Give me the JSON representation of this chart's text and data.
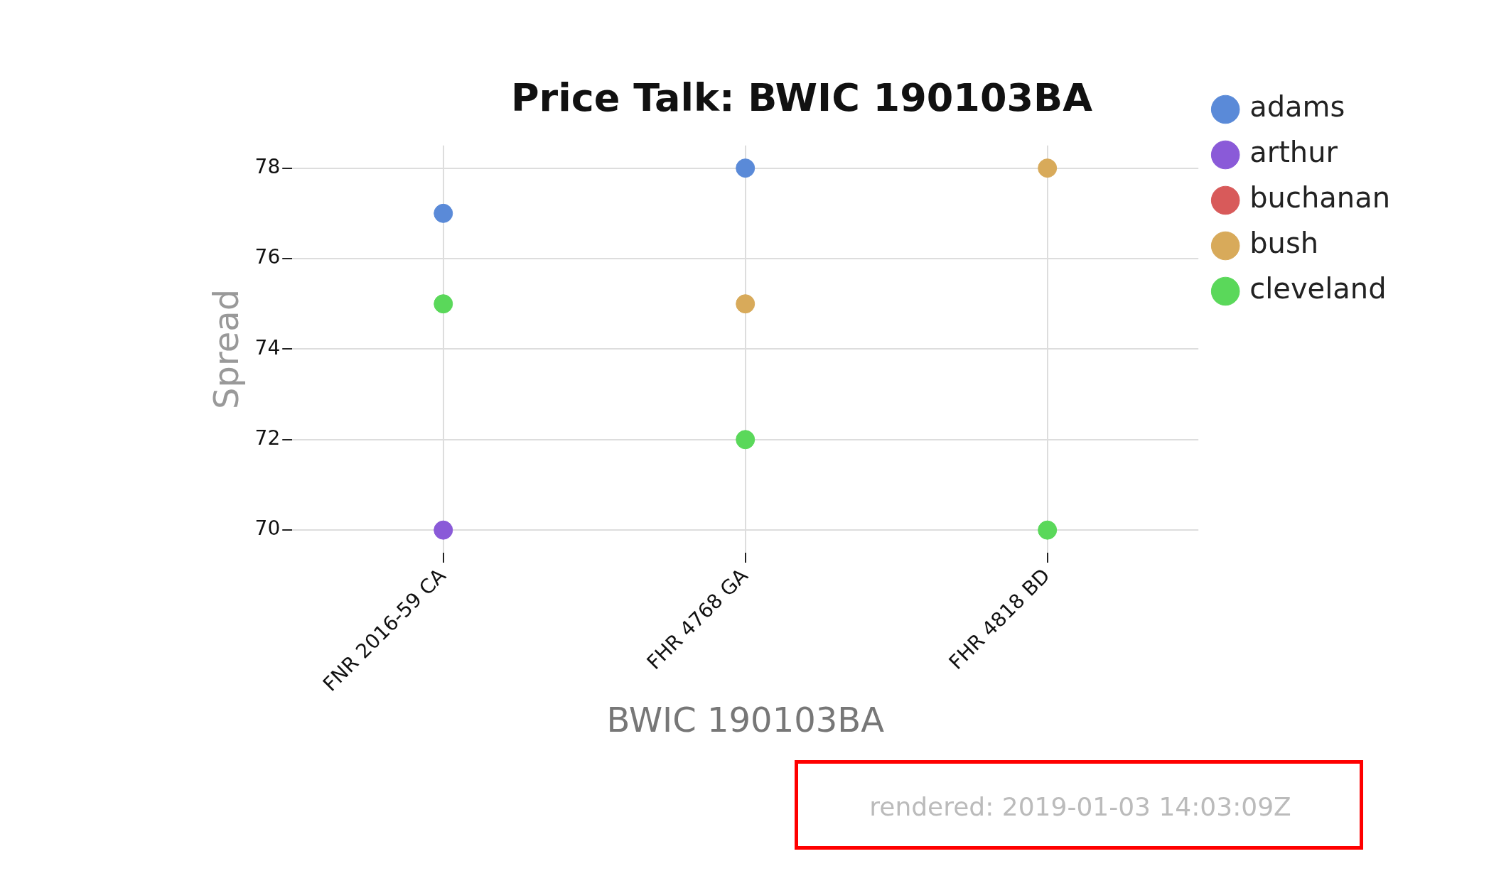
{
  "chart_data": {
    "type": "scatter",
    "title": "Price Talk: BWIC 190103BA",
    "xlabel": "BWIC 190103BA",
    "ylabel": "Spread",
    "categories": [
      "FNR 2016-59 CA",
      "FHR 4768 GA",
      "FHR 4818 BD"
    ],
    "series": [
      {
        "name": "adams",
        "color": "#5a8ad8",
        "values": [
          77,
          78,
          null
        ]
      },
      {
        "name": "arthur",
        "color": "#8a5ad8",
        "values": [
          70,
          null,
          null
        ]
      },
      {
        "name": "buchanan",
        "color": "#d85a5a",
        "values": [
          null,
          null,
          null
        ]
      },
      {
        "name": "bush",
        "color": "#d8aa5a",
        "values": [
          null,
          75,
          78
        ]
      },
      {
        "name": "cleveland",
        "color": "#5ad85a",
        "values": [
          75,
          72,
          70
        ]
      }
    ],
    "ylim": [
      69.5,
      78.5
    ],
    "yticks": [
      70,
      72,
      74,
      76,
      78
    ],
    "grid": true,
    "legend": "top right",
    "marker": "circle",
    "annotations": [
      "rendered: 2019-01-03 14:03:09Z"
    ]
  }
}
